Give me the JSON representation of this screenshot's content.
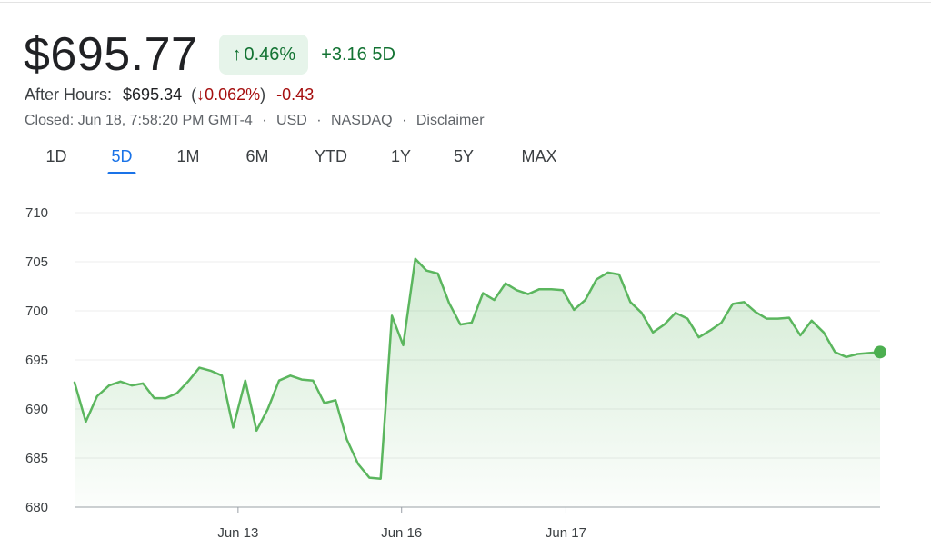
{
  "quote": {
    "price": "$695.77",
    "change_arrow": "↑",
    "change_pct": "0.46%",
    "change_abs": "+3.16",
    "change_period": "5D"
  },
  "after_hours": {
    "label": "After Hours:",
    "price": "$695.34",
    "pct_open": "(",
    "pct_arrow": "↓",
    "pct": "0.062%",
    "pct_close": ")",
    "abs": "-0.43"
  },
  "meta": {
    "closed": "Closed: Jun 18, 7:58:20 PM GMT-4",
    "currency": "USD",
    "exchange": "NASDAQ",
    "disclaimer": "Disclaimer",
    "separator": "·"
  },
  "tabs": [
    {
      "label": "1D",
      "active": false
    },
    {
      "label": "5D",
      "active": true
    },
    {
      "label": "1M",
      "active": false
    },
    {
      "label": "6M",
      "active": false
    },
    {
      "label": "YTD",
      "active": false
    },
    {
      "label": "1Y",
      "active": false
    },
    {
      "label": "5Y",
      "active": false
    },
    {
      "label": "MAX",
      "active": false
    }
  ],
  "colors": {
    "positive": "#137333",
    "negative": "#a50e0e",
    "line": "#5bb65e",
    "active_tab": "#1a73e8"
  },
  "chart_data": {
    "type": "area",
    "title": "",
    "xlabel": "",
    "ylabel": "",
    "ylim": [
      680,
      710
    ],
    "yticks": [
      680,
      685,
      690,
      695,
      700,
      705,
      710
    ],
    "xlim": [
      0,
      100
    ],
    "xticks": [
      {
        "x": 20.3,
        "label": "Jun 13"
      },
      {
        "x": 40.6,
        "label": "Jun 16"
      },
      {
        "x": 61.0,
        "label": "Jun 17"
      }
    ],
    "grid": true,
    "series": [
      {
        "values": [
          [
            0.0,
            692.7
          ],
          [
            1.4,
            688.7
          ],
          [
            2.8,
            691.3
          ],
          [
            4.3,
            692.4
          ],
          [
            5.7,
            692.8
          ],
          [
            7.1,
            692.4
          ],
          [
            8.5,
            692.6
          ],
          [
            9.9,
            691.1
          ],
          [
            11.3,
            691.1
          ],
          [
            12.7,
            691.6
          ],
          [
            14.1,
            692.8
          ],
          [
            15.5,
            694.2
          ],
          [
            16.9,
            693.9
          ],
          [
            18.3,
            693.4
          ],
          [
            19.7,
            688.1
          ],
          [
            21.2,
            692.9
          ],
          [
            22.6,
            687.8
          ],
          [
            24.0,
            690.0
          ],
          [
            25.4,
            692.9
          ],
          [
            26.8,
            693.4
          ],
          [
            28.2,
            693.0
          ],
          [
            29.6,
            692.9
          ],
          [
            31.0,
            690.6
          ],
          [
            32.4,
            690.9
          ],
          [
            33.8,
            686.9
          ],
          [
            35.2,
            684.4
          ],
          [
            36.6,
            683.0
          ],
          [
            38.0,
            682.9
          ],
          [
            39.4,
            699.5
          ],
          [
            40.8,
            696.5
          ],
          [
            42.3,
            705.3
          ],
          [
            43.7,
            704.1
          ],
          [
            45.1,
            703.8
          ],
          [
            46.5,
            700.8
          ],
          [
            47.9,
            698.6
          ],
          [
            49.3,
            698.8
          ],
          [
            50.7,
            701.8
          ],
          [
            52.1,
            701.1
          ],
          [
            53.5,
            702.8
          ],
          [
            54.9,
            702.1
          ],
          [
            56.3,
            701.7
          ],
          [
            57.7,
            702.2
          ],
          [
            59.2,
            702.2
          ],
          [
            60.6,
            702.1
          ],
          [
            62.0,
            700.1
          ],
          [
            63.4,
            701.1
          ],
          [
            64.8,
            703.2
          ],
          [
            66.2,
            703.9
          ],
          [
            67.6,
            703.7
          ],
          [
            69.0,
            700.9
          ],
          [
            70.4,
            699.8
          ],
          [
            71.8,
            697.8
          ],
          [
            73.2,
            698.6
          ],
          [
            74.6,
            699.8
          ],
          [
            76.1,
            699.2
          ],
          [
            77.5,
            697.3
          ],
          [
            78.9,
            698.0
          ],
          [
            80.3,
            698.8
          ],
          [
            81.7,
            700.7
          ],
          [
            83.1,
            700.9
          ],
          [
            84.5,
            699.9
          ],
          [
            85.9,
            699.2
          ],
          [
            87.3,
            699.2
          ],
          [
            88.7,
            699.3
          ],
          [
            90.1,
            697.5
          ],
          [
            91.5,
            699.0
          ],
          [
            93.0,
            697.8
          ],
          [
            94.4,
            695.8
          ],
          [
            95.8,
            695.3
          ],
          [
            97.2,
            695.6
          ],
          [
            100.0,
            695.8
          ]
        ]
      }
    ],
    "last_point_marker": true
  }
}
